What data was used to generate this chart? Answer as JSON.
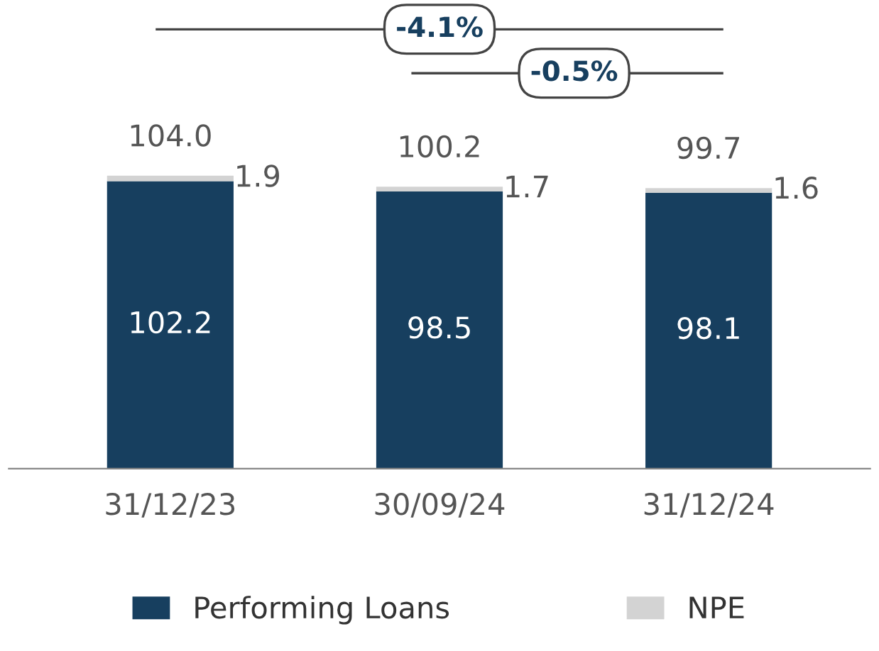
{
  "chart_data": {
    "type": "bar",
    "stacked": true,
    "categories": [
      "31/12/23",
      "30/09/24",
      "31/12/24"
    ],
    "series": [
      {
        "name": "Performing Loans",
        "color": "#173f5f",
        "values": [
          102.2,
          98.5,
          98.1
        ]
      },
      {
        "name": "NPE",
        "color": "#d3d3d3",
        "values": [
          1.9,
          1.7,
          1.6
        ]
      }
    ],
    "data_labels": true,
    "totals": [
      "104.0",
      "100.2",
      "99.7"
    ],
    "annotations": [
      "-4.1%",
      "-0.5%"
    ],
    "legend": "bottom",
    "grid": false
  }
}
